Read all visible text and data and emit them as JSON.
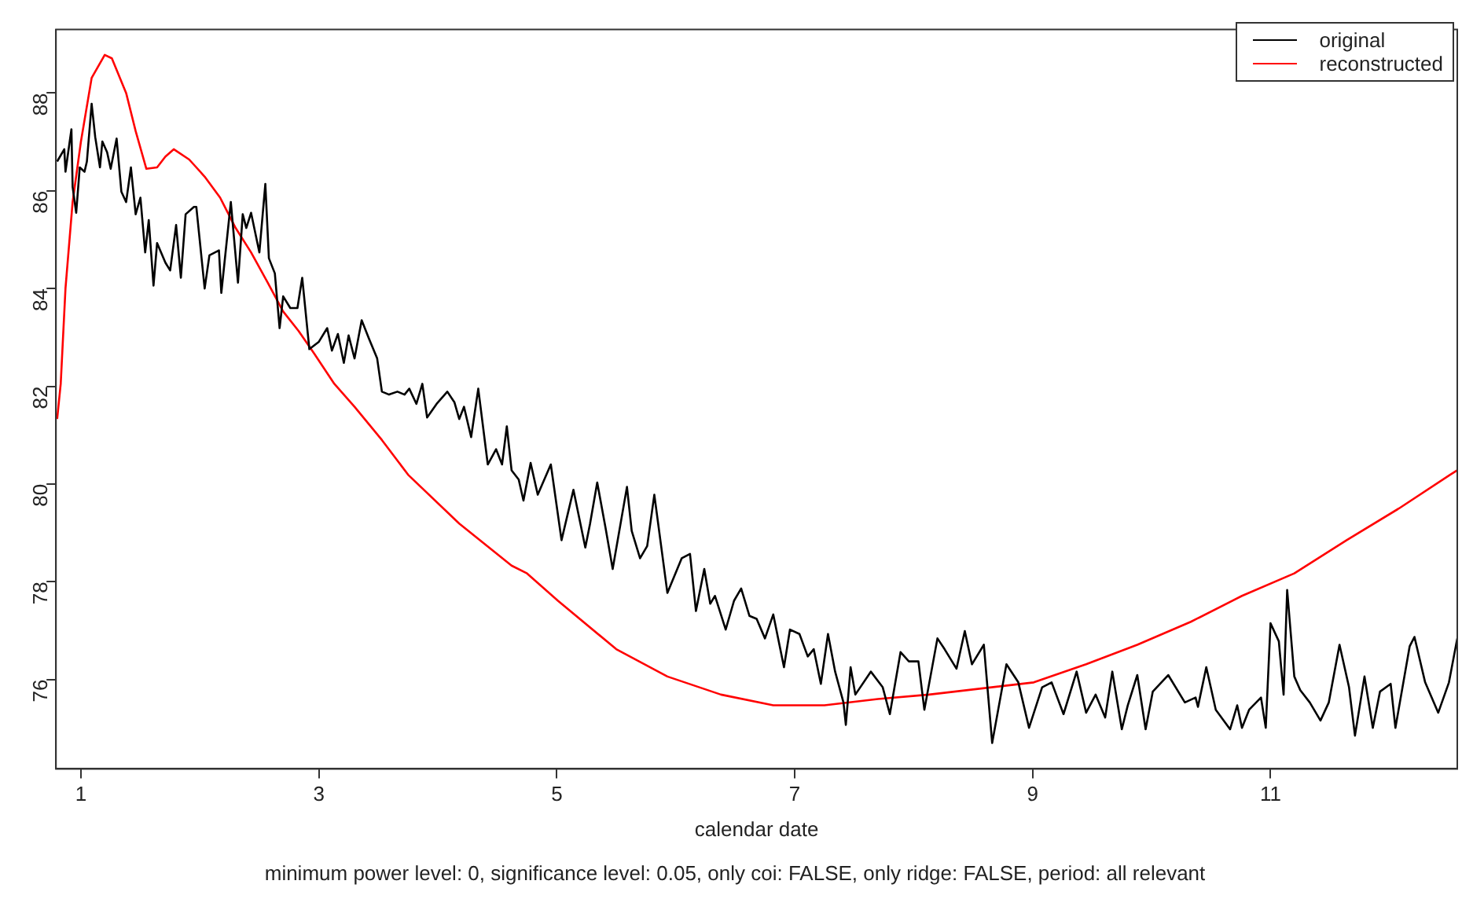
{
  "chart_data": {
    "type": "line",
    "xlabel": "calendar date",
    "annotations": [
      "minimum power level: 0, significance level: 0.05, only coi: FALSE, only ridge: FALSE, period: all relevant"
    ],
    "xlim": [
      0.79,
      12.57
    ],
    "xticks": [
      1,
      3,
      5,
      7,
      9,
      11
    ],
    "ylim": [
      74.17,
      89.3
    ],
    "yticks": [
      76,
      78,
      80,
      82,
      84,
      86,
      88
    ],
    "grid": false,
    "legend": "top right",
    "line_style": "solid",
    "marker": "none",
    "series": [
      {
        "name": "original",
        "color": "#000000",
        "x": [
          0.8,
          0.86,
          0.87,
          0.92,
          0.93,
          0.96,
          0.99,
          1.03,
          1.05,
          1.09,
          1.12,
          1.16,
          1.18,
          1.22,
          1.25,
          1.3,
          1.34,
          1.38,
          1.42,
          1.46,
          1.5,
          1.54,
          1.57,
          1.61,
          1.64,
          1.71,
          1.75,
          1.8,
          1.84,
          1.88,
          1.95,
          1.97,
          2.04,
          2.08,
          2.16,
          2.18,
          2.26,
          2.32,
          2.36,
          2.39,
          2.43,
          2.5,
          2.55,
          2.58,
          2.63,
          2.67,
          2.7,
          2.76,
          2.82,
          2.86,
          2.92,
          3.0,
          3.07,
          3.11,
          3.16,
          3.21,
          3.25,
          3.3,
          3.36,
          3.42,
          3.49,
          3.53,
          3.59,
          3.66,
          3.72,
          3.76,
          3.82,
          3.87,
          3.91,
          3.99,
          4.08,
          4.14,
          4.18,
          4.22,
          4.28,
          4.34,
          4.42,
          4.49,
          4.54,
          4.58,
          4.62,
          4.68,
          4.72,
          4.78,
          4.84,
          4.95,
          5.04,
          5.14,
          5.24,
          5.28,
          5.34,
          5.41,
          5.47,
          5.59,
          5.63,
          5.7,
          5.76,
          5.82,
          5.93,
          6.05,
          6.12,
          6.17,
          6.24,
          6.29,
          6.33,
          6.42,
          6.49,
          6.55,
          6.62,
          6.68,
          6.75,
          6.82,
          6.91,
          6.96,
          7.04,
          7.11,
          7.16,
          7.22,
          7.28,
          7.34,
          7.41,
          7.43,
          7.47,
          7.51,
          7.64,
          7.74,
          7.8,
          7.89,
          7.96,
          8.04,
          8.09,
          8.2,
          8.26,
          8.36,
          8.43,
          8.49,
          8.59,
          8.66,
          8.78,
          8.88,
          8.97,
          9.08,
          9.16,
          9.26,
          9.37,
          9.45,
          9.53,
          9.61,
          9.67,
          9.75,
          9.8,
          9.88,
          9.95,
          10.01,
          10.14,
          10.28,
          10.37,
          10.39,
          10.46,
          10.54,
          10.66,
          10.72,
          10.76,
          10.82,
          10.92,
          10.96,
          11.0,
          11.07,
          11.11,
          11.14,
          11.2,
          11.25,
          11.33,
          11.42,
          11.49,
          11.58,
          11.66,
          11.71,
          11.79,
          11.86,
          11.92,
          12.01,
          12.05,
          12.17,
          12.21,
          12.3,
          12.41,
          12.5,
          12.57
        ],
        "values": [
          86.6,
          86.85,
          86.39,
          87.26,
          86.08,
          85.55,
          86.48,
          86.39,
          86.6,
          87.78,
          87.1,
          86.48,
          87.01,
          86.79,
          86.45,
          87.07,
          85.98,
          85.77,
          86.48,
          85.52,
          85.86,
          84.74,
          85.4,
          84.06,
          84.93,
          84.53,
          84.37,
          85.3,
          84.22,
          85.52,
          85.67,
          85.67,
          84.0,
          84.68,
          84.78,
          83.91,
          85.77,
          84.12,
          85.52,
          85.24,
          85.55,
          84.74,
          86.14,
          84.62,
          84.31,
          83.19,
          83.84,
          83.6,
          83.6,
          84.22,
          82.76,
          82.91,
          83.19,
          82.73,
          83.07,
          82.48,
          83.04,
          82.57,
          83.35,
          82.98,
          82.57,
          81.89,
          81.83,
          81.89,
          81.83,
          81.95,
          81.64,
          82.05,
          81.36,
          81.64,
          81.89,
          81.67,
          81.33,
          81.58,
          80.96,
          81.95,
          80.4,
          80.71,
          80.4,
          81.18,
          80.28,
          80.09,
          79.66,
          80.43,
          79.78,
          80.4,
          78.85,
          79.88,
          78.7,
          79.19,
          80.03,
          79.1,
          78.26,
          79.94,
          79.04,
          78.48,
          78.73,
          79.78,
          77.77,
          78.48,
          78.57,
          77.4,
          78.26,
          77.55,
          77.71,
          77.02,
          77.61,
          77.86,
          77.3,
          77.24,
          76.84,
          77.33,
          76.25,
          77.02,
          76.93,
          76.47,
          76.62,
          75.91,
          76.93,
          76.16,
          75.53,
          75.07,
          76.25,
          75.69,
          76.16,
          75.84,
          75.29,
          76.56,
          76.37,
          76.37,
          75.38,
          76.84,
          76.62,
          76.22,
          76.99,
          76.31,
          76.71,
          74.7,
          76.31,
          75.94,
          75.01,
          75.84,
          75.94,
          75.29,
          76.16,
          75.32,
          75.69,
          75.22,
          76.16,
          74.98,
          75.47,
          76.09,
          74.98,
          75.75,
          76.09,
          75.53,
          75.63,
          75.44,
          76.25,
          75.38,
          74.98,
          75.47,
          75.01,
          75.38,
          75.63,
          75.01,
          77.15,
          76.78,
          75.69,
          77.83,
          76.06,
          75.78,
          75.53,
          75.16,
          75.53,
          76.71,
          75.84,
          74.85,
          76.06,
          75.01,
          75.75,
          75.91,
          75.01,
          76.68,
          76.87,
          75.94,
          75.32,
          75.94,
          76.84
        ]
      },
      {
        "name": "reconstructed",
        "color": "#ff0000",
        "x": [
          0.8,
          0.83,
          0.87,
          0.93,
          1.0,
          1.09,
          1.2,
          1.26,
          1.38,
          1.46,
          1.55,
          1.64,
          1.71,
          1.78,
          1.91,
          2.04,
          2.17,
          2.3,
          2.43,
          2.57,
          2.7,
          2.83,
          2.96,
          3.13,
          3.3,
          3.53,
          3.75,
          4.18,
          4.62,
          4.75,
          5.01,
          5.5,
          5.93,
          6.38,
          6.82,
          7.25,
          7.7,
          8.13,
          9.01,
          9.45,
          9.88,
          10.33,
          10.76,
          11.2,
          11.64,
          12.08,
          12.51,
          12.57
        ],
        "values": [
          81.33,
          82.05,
          84.0,
          85.77,
          87.01,
          88.31,
          88.78,
          88.71,
          88.0,
          87.22,
          86.45,
          86.48,
          86.7,
          86.85,
          86.64,
          86.29,
          85.86,
          85.24,
          84.74,
          84.12,
          83.53,
          83.13,
          82.67,
          82.05,
          81.58,
          80.9,
          80.19,
          79.19,
          78.33,
          78.17,
          77.61,
          76.62,
          76.06,
          75.69,
          75.47,
          75.47,
          75.6,
          75.69,
          75.94,
          76.31,
          76.71,
          77.18,
          77.71,
          78.17,
          78.85,
          79.5,
          80.19,
          80.28
        ]
      }
    ]
  }
}
